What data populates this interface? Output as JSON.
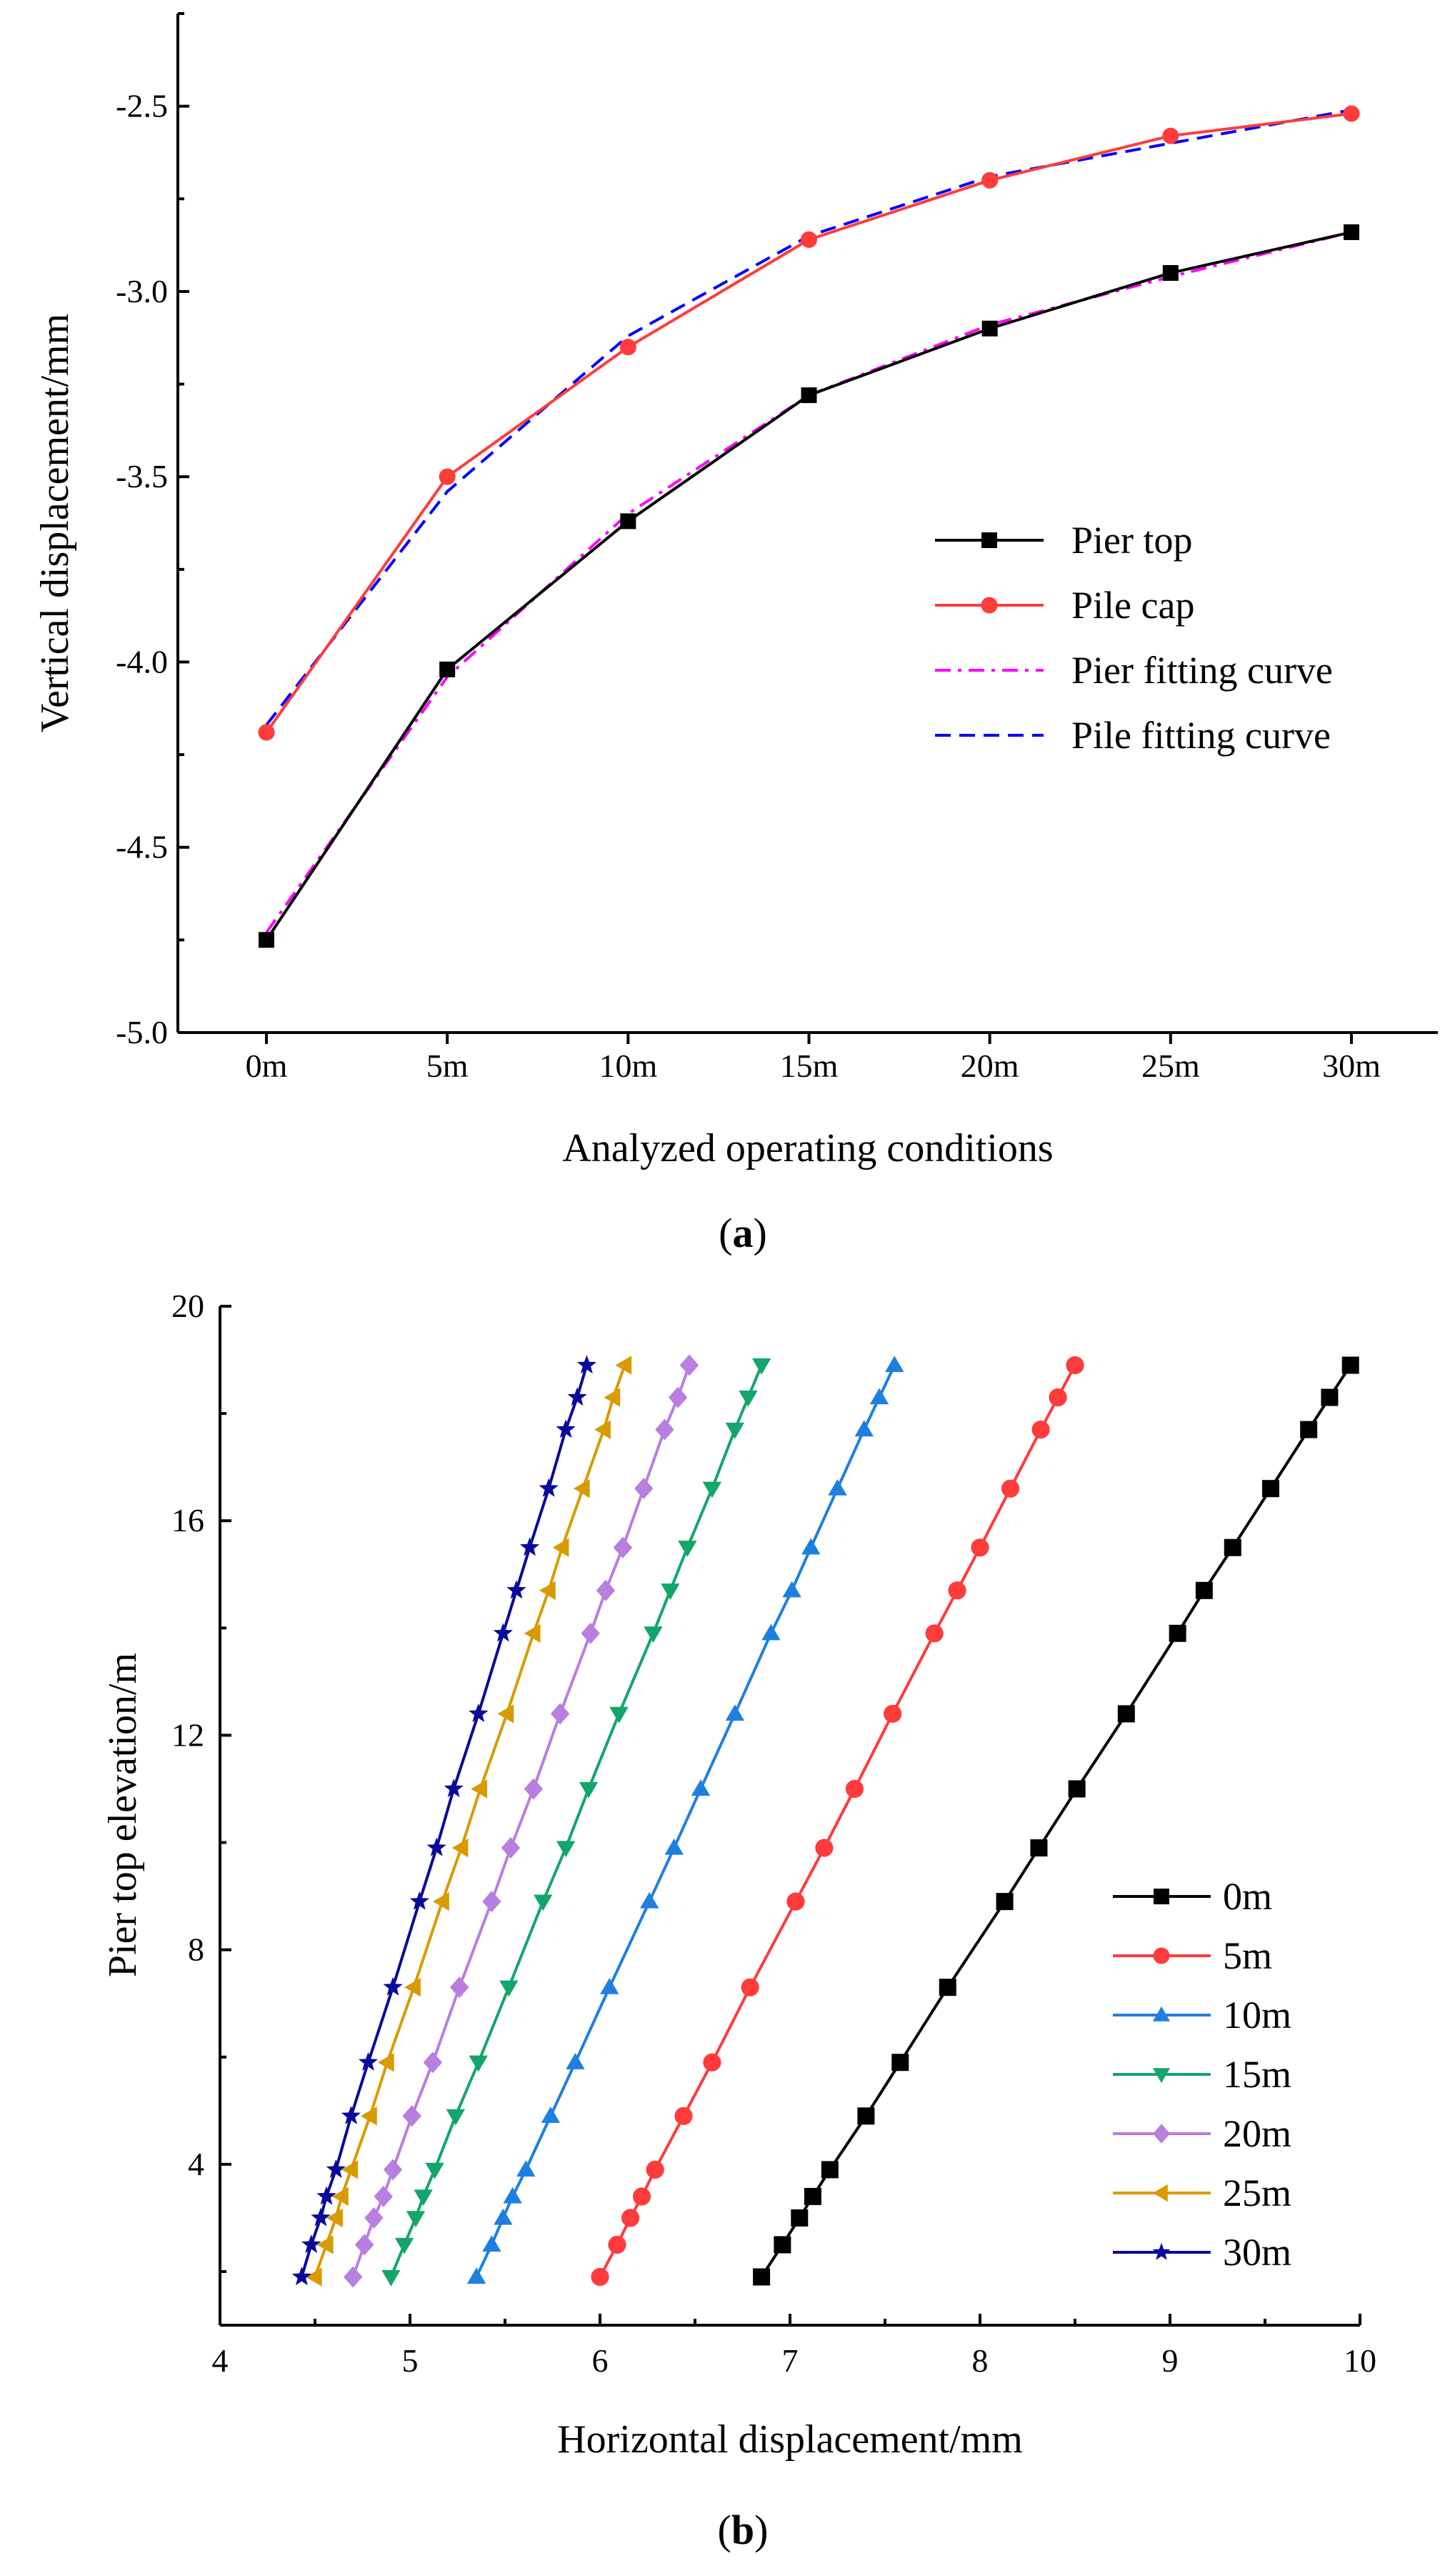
{
  "chart_data": [
    {
      "type": "line",
      "panel_label": "(a)",
      "caption_letter": "a",
      "xlabel": "Analyzed operating conditions",
      "ylabel": "Vertical displacement/mm",
      "categories": [
        "0m",
        "5m",
        "10m",
        "15m",
        "20m",
        "25m",
        "30m"
      ],
      "ylim": [
        -5.0,
        -2.25
      ],
      "yticks": [
        -5.0,
        -4.5,
        -4.0,
        -3.5,
        -3.0,
        -2.5
      ],
      "ytick_labels": [
        "-5.0",
        "-4.5",
        "-4.0",
        "-3.5",
        "-3.0",
        "-2.5"
      ],
      "grid": false,
      "legend_position": "center-right",
      "series": [
        {
          "name": "Pier top",
          "color": "#000000",
          "marker": "square",
          "dash": "solid",
          "values": [
            -4.75,
            -4.02,
            -3.62,
            -3.28,
            -3.1,
            -2.95,
            -2.84
          ]
        },
        {
          "name": "Pile cap",
          "color": "#ff3b3b",
          "marker": "circle",
          "dash": "solid",
          "values": [
            -4.19,
            -3.5,
            -3.15,
            -2.86,
            -2.7,
            -2.58,
            -2.52
          ]
        },
        {
          "name": "Pier fitting curve",
          "color": "#ff00ff",
          "marker": "none",
          "dash": "dashdot",
          "values": [
            -4.73,
            -4.04,
            -3.6,
            -3.28,
            -3.09,
            -2.96,
            -2.84
          ]
        },
        {
          "name": "Pile fitting curve",
          "color": "#0000ff",
          "marker": "none",
          "dash": "dash",
          "values": [
            -4.17,
            -3.54,
            -3.12,
            -2.85,
            -2.69,
            -2.6,
            -2.51
          ]
        }
      ]
    },
    {
      "type": "line",
      "panel_label": "(b)",
      "caption_letter": "b",
      "xlabel": "Horizontal displacement/mm",
      "ylabel": "Pier top elevation/m",
      "xlim": [
        4,
        10
      ],
      "ylim": [
        1,
        20
      ],
      "xticks": [
        4,
        5,
        6,
        7,
        8,
        9,
        10
      ],
      "xtick_labels": [
        "4",
        "5",
        "6",
        "7",
        "8",
        "9",
        "10"
      ],
      "yticks": [
        4,
        8,
        12,
        16,
        20
      ],
      "ytick_labels": [
        "4",
        "8",
        "12",
        "16",
        "20"
      ],
      "grid": false,
      "legend_position": "bottom-right",
      "y": [
        1.9,
        2.5,
        3.0,
        3.4,
        3.9,
        4.9,
        5.9,
        7.3,
        8.9,
        9.9,
        11.0,
        12.4,
        13.9,
        14.7,
        15.5,
        16.6,
        17.7,
        18.3,
        18.9
      ],
      "series": [
        {
          "name": "0m",
          "color": "#000000",
          "marker": "square",
          "x": [
            6.85,
            6.96,
            7.05,
            7.12,
            7.21,
            7.4,
            7.58,
            7.83,
            8.13,
            8.31,
            8.51,
            8.77,
            9.04,
            9.18,
            9.33,
            9.53,
            9.73,
            9.84,
            9.95
          ]
        },
        {
          "name": "5m",
          "color": "#ff3b3b",
          "marker": "circle",
          "x": [
            6.0,
            6.09,
            6.16,
            6.22,
            6.29,
            6.44,
            6.59,
            6.79,
            7.03,
            7.18,
            7.34,
            7.54,
            7.76,
            7.88,
            8.0,
            8.16,
            8.32,
            8.41,
            8.5
          ]
        },
        {
          "name": "10m",
          "color": "#1e7fe0",
          "marker": "triangle-up",
          "x": [
            5.35,
            5.43,
            5.49,
            5.54,
            5.61,
            5.74,
            5.87,
            6.05,
            6.26,
            6.39,
            6.53,
            6.71,
            6.9,
            7.01,
            7.11,
            7.25,
            7.39,
            7.47,
            7.55
          ]
        },
        {
          "name": "15m",
          "color": "#12a66a",
          "marker": "triangle-down",
          "x": [
            4.9,
            4.97,
            5.03,
            5.07,
            5.13,
            5.24,
            5.36,
            5.52,
            5.7,
            5.82,
            5.94,
            6.1,
            6.28,
            6.37,
            6.46,
            6.59,
            6.71,
            6.78,
            6.85
          ]
        },
        {
          "name": "20m",
          "color": "#b87ee0",
          "marker": "diamond",
          "x": [
            4.7,
            4.76,
            4.81,
            4.86,
            4.91,
            5.01,
            5.12,
            5.26,
            5.43,
            5.53,
            5.65,
            5.79,
            5.95,
            6.03,
            6.12,
            6.23,
            6.34,
            6.41,
            6.47
          ]
        },
        {
          "name": "25m",
          "color": "#d99a00",
          "marker": "triangle-left",
          "x": [
            4.5,
            4.56,
            4.61,
            4.64,
            4.69,
            4.79,
            4.88,
            5.02,
            5.17,
            5.27,
            5.37,
            5.51,
            5.65,
            5.73,
            5.8,
            5.91,
            6.02,
            6.07,
            6.13
          ]
        },
        {
          "name": "30m",
          "color": "#0a0a9a",
          "marker": "star",
          "x": [
            4.43,
            4.48,
            4.53,
            4.56,
            4.61,
            4.69,
            4.78,
            4.91,
            5.05,
            5.14,
            5.23,
            5.36,
            5.49,
            5.56,
            5.63,
            5.73,
            5.82,
            5.88,
            5.93
          ]
        }
      ]
    }
  ]
}
